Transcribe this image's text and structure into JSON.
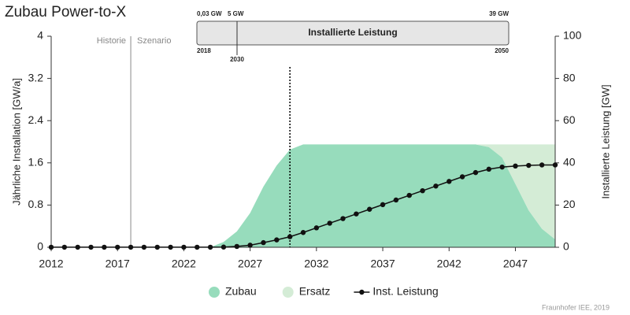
{
  "chart_data": {
    "type": "area",
    "title": "Zubau Power-to-X",
    "y_label": "Jährliche Installation [GW/a]",
    "y2_label": "Installierte Leistung [GW]",
    "annotations": {
      "left_phase": "Historie",
      "right_phase": "Szenario",
      "source": "Fraunhofer IEE, 2019"
    },
    "vlines": [
      2018,
      2030
    ],
    "timeline": {
      "title": "Installierte Leistung",
      "start_value": "0,03 GW",
      "mid_value": "5 GW",
      "end_value": "39 GW",
      "start_year": "2018",
      "mid_year": "2030",
      "end_year": "2050"
    },
    "x": [
      2012,
      2013,
      2014,
      2015,
      2016,
      2017,
      2018,
      2019,
      2020,
      2021,
      2022,
      2023,
      2024,
      2025,
      2026,
      2027,
      2028,
      2029,
      2030,
      2031,
      2032,
      2033,
      2034,
      2035,
      2036,
      2037,
      2038,
      2039,
      2040,
      2041,
      2042,
      2043,
      2044,
      2045,
      2046,
      2047,
      2048,
      2049,
      2050
    ],
    "xlim": [
      2012,
      2050
    ],
    "xticks": [
      2012,
      2017,
      2022,
      2027,
      2032,
      2037,
      2042,
      2047
    ],
    "ylim": [
      0,
      4
    ],
    "yticks": [
      0,
      0.8,
      1.6,
      2.4,
      3.2,
      4
    ],
    "y2lim": [
      0,
      100
    ],
    "y2ticks": [
      0,
      20,
      40,
      60,
      80,
      100
    ],
    "series": [
      {
        "name": "Zubau",
        "color": "#97dcbc",
        "kind": "area",
        "values": [
          0,
          0,
          0,
          0,
          0,
          0,
          0,
          0,
          0,
          0,
          0,
          0,
          0,
          0.1,
          0.3,
          0.65,
          1.15,
          1.55,
          1.85,
          1.95,
          1.95,
          1.95,
          1.95,
          1.95,
          1.95,
          1.95,
          1.95,
          1.95,
          1.95,
          1.95,
          1.95,
          1.95,
          1.95,
          1.9,
          1.7,
          1.2,
          0.7,
          0.35,
          0.15
        ]
      },
      {
        "name": "Ersatz",
        "color": "#d4ecd6",
        "kind": "area",
        "values": [
          0,
          0,
          0,
          0,
          0,
          0,
          0,
          0,
          0,
          0,
          0,
          0,
          0,
          0,
          0,
          0,
          0,
          0,
          0,
          0,
          0,
          0,
          0,
          0,
          0,
          0,
          0,
          0,
          0,
          0,
          0,
          0,
          0,
          0.05,
          0.25,
          0.75,
          1.25,
          1.6,
          1.8
        ]
      },
      {
        "name": "Inst. Leistung",
        "color": "#111111",
        "kind": "line",
        "axis": "y2",
        "values": [
          0.03,
          0.03,
          0.03,
          0.03,
          0.03,
          0.03,
          0.03,
          0.03,
          0.03,
          0.03,
          0.03,
          0.03,
          0.03,
          0.1,
          0.4,
          1,
          2.2,
          3.5,
          5,
          7,
          9.2,
          11.4,
          13.6,
          15.8,
          18,
          20.2,
          22.4,
          24.6,
          26.8,
          29,
          31.2,
          33.4,
          35.4,
          37,
          38,
          38.5,
          38.8,
          39,
          39
        ]
      }
    ]
  }
}
